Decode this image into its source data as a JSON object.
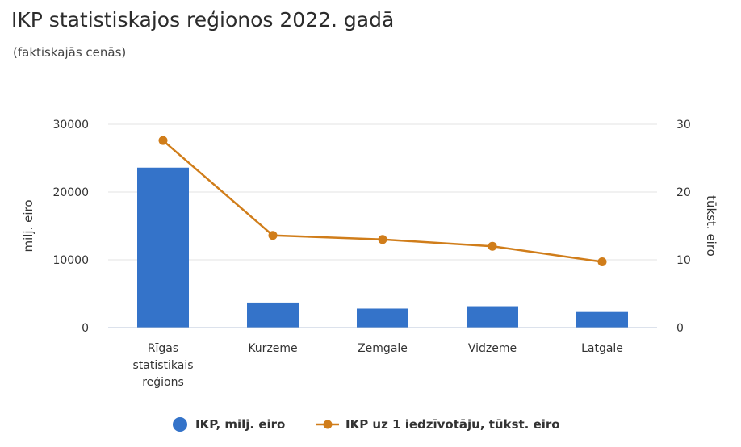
{
  "title": "IKP statistiskajos reģionos 2022. gadā",
  "subtitle": "(faktiskajās cenās)",
  "chart_data": {
    "type": "bar",
    "categories": [
      [
        "Rīgas",
        "statistikais",
        "reģions"
      ],
      [
        "Kurzeme"
      ],
      [
        "Zemgale"
      ],
      [
        "Vidzeme"
      ],
      [
        "Latgale"
      ]
    ],
    "series": [
      {
        "name": "IKP, milj. eiro",
        "type": "bar",
        "axis": "left",
        "color": "#3473c9",
        "values": [
          23600,
          3700,
          2800,
          3150,
          2300
        ]
      },
      {
        "name": "IKP uz 1 iedzīvotāju, tūkst. eiro",
        "type": "line",
        "axis": "right",
        "color": "#d07d1a",
        "values": [
          27.6,
          13.6,
          13.0,
          12.0,
          9.7
        ]
      }
    ],
    "ylabel": "milj. eiro",
    "ylabel_right": "tūkst. eiro",
    "ylim": [
      0,
      30000
    ],
    "ylim_right": [
      0,
      30
    ],
    "yticks": [
      "0",
      "10000",
      "20000",
      "30000"
    ],
    "yticks_right": [
      "0",
      "10",
      "20",
      "30"
    ],
    "grid": true,
    "legend": "bottom-center"
  }
}
